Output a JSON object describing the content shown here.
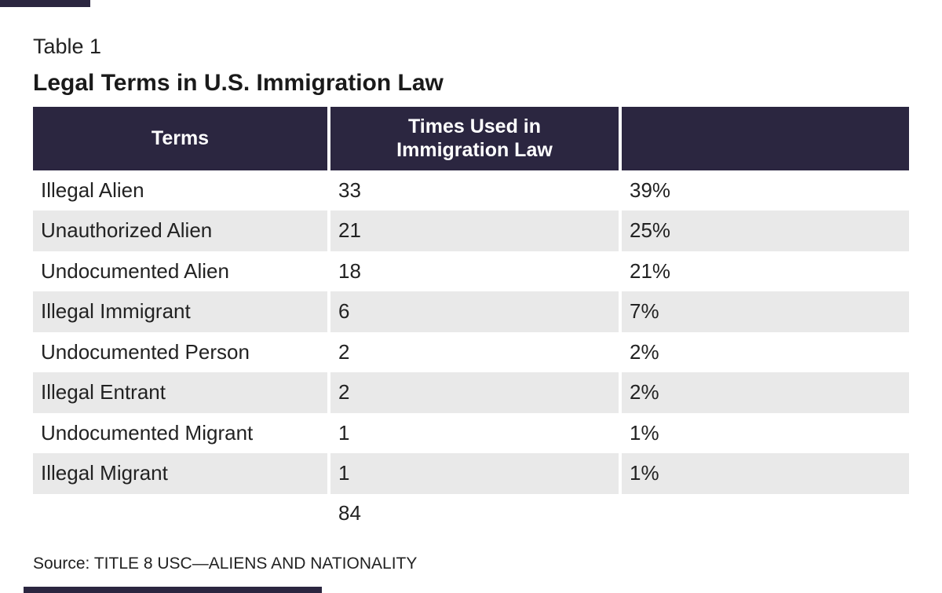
{
  "page": {
    "table_number": "Table 1",
    "title": "Legal Terms in U.S. Immigration Law",
    "source": "Source: TITLE 8 USC—ALIENS AND NATIONALITY"
  },
  "colors": {
    "header_bg": "#2b2640",
    "stripe_bg": "#e9e9e9",
    "header_text": "#ffffff",
    "body_text": "#222222",
    "title_text": "#1a1a1a"
  },
  "chart_data": {
    "type": "table",
    "title": "Legal Terms in U.S. Immigration Law",
    "columns": [
      "Terms",
      "Times Used in Immigration Law",
      ""
    ],
    "rows": [
      {
        "term": "Illegal Alien",
        "times": "33",
        "share": "39%"
      },
      {
        "term": "Unauthorized Alien",
        "times": "21",
        "share": "25%"
      },
      {
        "term": "Undocumented Alien",
        "times": "18",
        "share": "21%"
      },
      {
        "term": "Illegal Immigrant",
        "times": "6",
        "share": "7%"
      },
      {
        "term": "Undocumented Person",
        "times": "2",
        "share": "2%"
      },
      {
        "term": "Illegal Entrant",
        "times": "2",
        "share": "2%"
      },
      {
        "term": "Undocumented Migrant",
        "times": "1",
        "share": "1%"
      },
      {
        "term": "Illegal Migrant",
        "times": "1",
        "share": "1%"
      }
    ],
    "total_times": "84"
  }
}
